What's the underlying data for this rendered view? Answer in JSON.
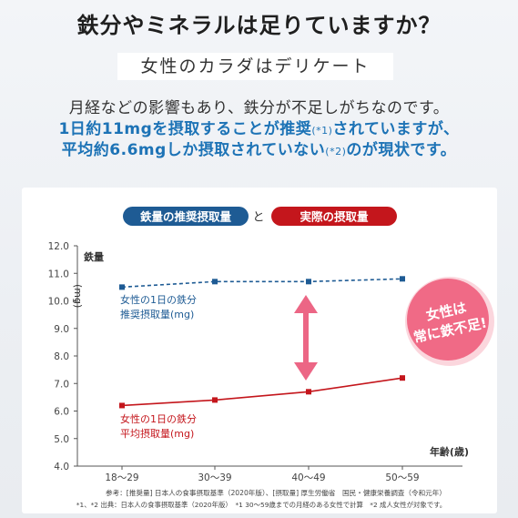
{
  "header": {
    "headline": "鉄分やミネラルは足りていますか？",
    "subtitle": "女性のカラダはデリケート",
    "line1": "月経などの影響もあり、鉄分が不足しがちなのです。",
    "line2_a": "1日約11mgを摂取することが推奨",
    "line2_sup": "(*1)",
    "line2_b": "されていますが、",
    "line3_a": "平均約6.6mgしか摂取されていない",
    "line3_sup": "(*2)",
    "line3_b": "のが現状です。"
  },
  "legend": {
    "recommended": "鉄量の推奨摂取量",
    "connector": "と",
    "actual": "実際の摂取量"
  },
  "badge": {
    "line1": "女性は",
    "line2": "常に鉄不足!"
  },
  "chart_data": {
    "type": "line",
    "categories": [
      "18〜29",
      "30〜39",
      "40〜49",
      "50〜59"
    ],
    "ylabel_line1": "鉄量",
    "ylabel_line2": "(mg)",
    "xlabel": "年齢(歳)",
    "ylim": [
      4.0,
      12.0
    ],
    "yticks": [
      "4.0",
      "5.0",
      "6.0",
      "7.0",
      "8.0",
      "9.0",
      "10.0",
      "11.0",
      "12.0"
    ],
    "grid": false,
    "series": [
      {
        "name_line1": "女性の1日の鉄分",
        "name_line2": "推奨摂取量(mg)",
        "values": [
          10.5,
          10.7,
          10.7,
          10.8
        ],
        "color": "#1e5b94",
        "style": "dashed"
      },
      {
        "name_line1": "女性の1日の鉄分",
        "name_line2": "平均摂取量(mg)",
        "values": [
          6.2,
          6.4,
          6.7,
          7.2
        ],
        "color": "#c4161c",
        "style": "solid"
      }
    ]
  },
  "footnotes": {
    "note1": "参考：[推奨量] 日本人の食事摂取基準（2020年版）、[摂取量] 厚生労働省　国民・健康栄養調査（令和元年）",
    "note2": "*1、*2 出典：日本人の食事摂取基準（2020年版）　*1 30〜59歳までの月経のある女性で計算　*2 成人女性が対象です。"
  },
  "colors": {
    "blue": "#1d73b6",
    "navy": "#1e5b94",
    "red": "#c4161c",
    "pink": "#f06a86",
    "arrow": "#ec6685"
  }
}
